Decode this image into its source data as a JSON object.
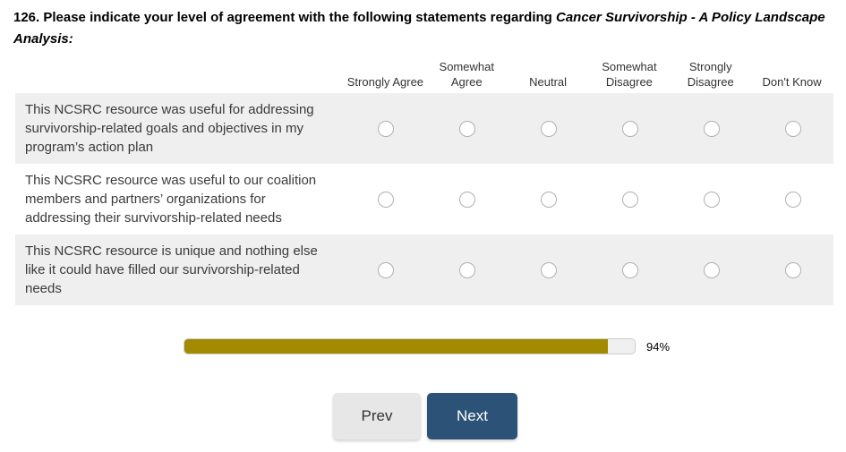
{
  "question": {
    "prefix": "126. Please indicate your level of agreement with the following statements regarding ",
    "resource_title": "Cancer Survivorship - A Policy Landscape Analysis:"
  },
  "matrix": {
    "columns": [
      "Strongly Agree",
      "Somewhat Agree",
      "Neutral",
      "Somewhat Disagree",
      "Strongly Disagree",
      "Don't Know"
    ],
    "rows": [
      {
        "label": "This NCSRC resource was useful for addressing survivorship-related goals and objectives in my program’s action plan",
        "selected": null
      },
      {
        "label": "This NCSRC resource was useful to our coalition members and partners’ organizations for addressing their survivorship-related needs",
        "selected": null
      },
      {
        "label": "This NCSRC resource is unique and nothing else like it could have filled our survivorship-related needs",
        "selected": null
      }
    ]
  },
  "progress": {
    "percent": 94,
    "label": "94%"
  },
  "nav": {
    "prev_label": "Prev",
    "next_label": "Next"
  },
  "colors": {
    "row_stripe": "#efefef",
    "progress_fill": "#a28b00",
    "next_button": "#2c5377",
    "prev_button": "#e7e7e7"
  }
}
